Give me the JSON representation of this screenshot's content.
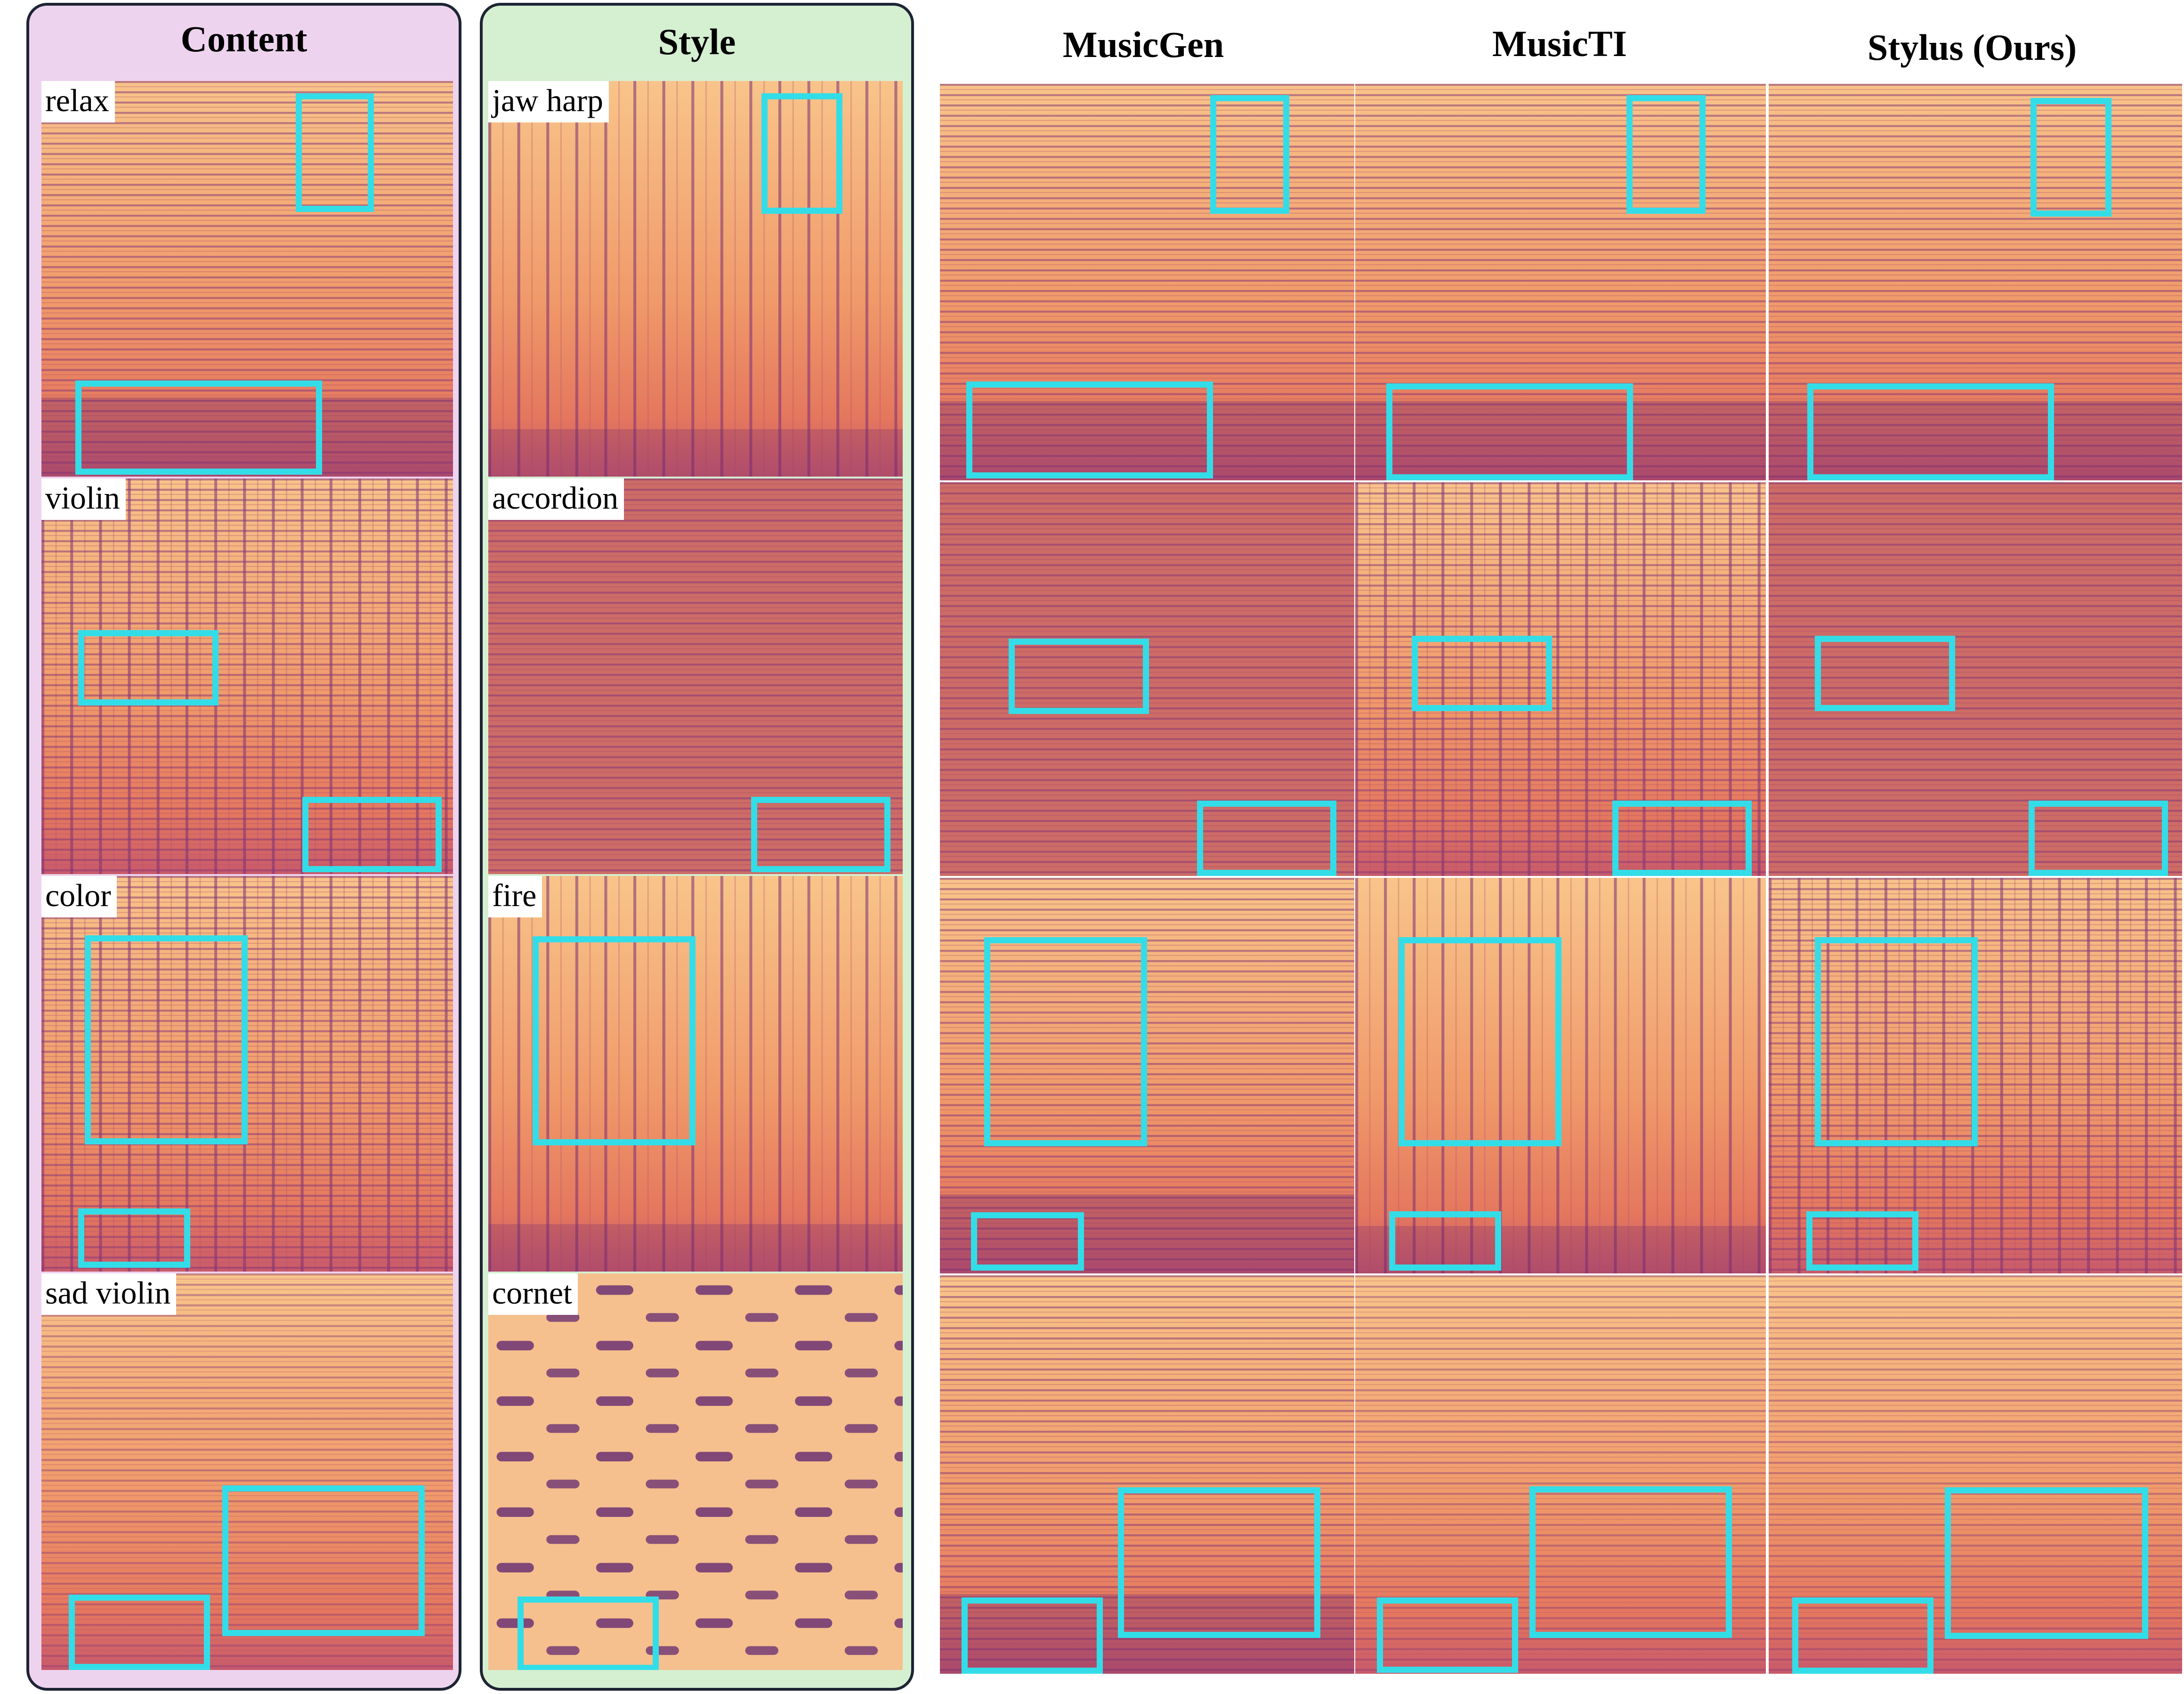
{
  "headers": {
    "content": "Content",
    "style": "Style",
    "musicgen": "MusicGen",
    "musicti": "MusicTI",
    "stylus": "Stylus (Ours)"
  },
  "rows": [
    {
      "content_label": "relax",
      "style_label": "jaw harp"
    },
    {
      "content_label": "violin",
      "style_label": "accordion"
    },
    {
      "content_label": "color",
      "style_label": "fire"
    },
    {
      "content_label": "sad violin",
      "style_label": "cornet"
    }
  ],
  "colors": {
    "content_panel": "#eed3ef",
    "style_panel": "#d5efd1",
    "panel_border": "#1d2433",
    "highlight_box": "#33dde8",
    "spectrogram_light": "#f8c48a",
    "spectrogram_mid": "#e4775e",
    "spectrogram_dark": "#4a1966"
  }
}
